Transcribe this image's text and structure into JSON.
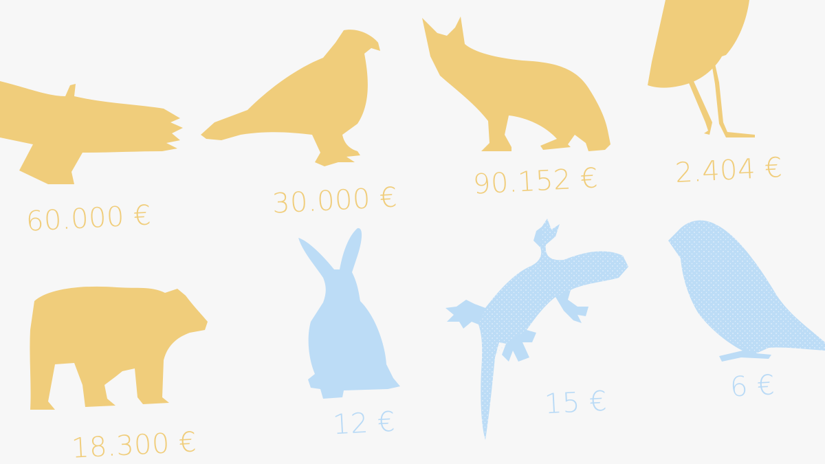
{
  "colors": {
    "protected": "#f0cd7b",
    "common": "#bcdcf6",
    "background": "#f7f7f7"
  },
  "animals": [
    {
      "icon": "soaring-bird-icon",
      "price": "60.000 €",
      "group": "protected"
    },
    {
      "icon": "eagle-icon",
      "price": "30.000 €",
      "group": "protected"
    },
    {
      "icon": "lynx-icon",
      "price": "90.152 €",
      "group": "protected"
    },
    {
      "icon": "stork-icon",
      "price": "2.404 €",
      "group": "protected"
    },
    {
      "icon": "bear-icon",
      "price": "18.300 €",
      "group": "protected"
    },
    {
      "icon": "rabbit-icon",
      "price": "12 €",
      "group": "common"
    },
    {
      "icon": "gecko-icon",
      "price": "15 €",
      "group": "common"
    },
    {
      "icon": "sparrow-icon",
      "price": "6 €",
      "group": "common"
    }
  ]
}
